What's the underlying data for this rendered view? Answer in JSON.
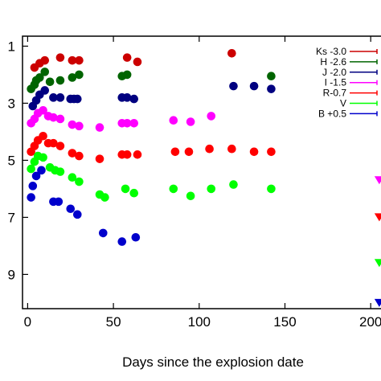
{
  "chart_data": {
    "type": "scatter",
    "title": "",
    "xlabel": "Days since the explosion date",
    "ylabel": "",
    "xlim": [
      -3,
      206
    ],
    "ylim": [
      10.2,
      0.65
    ],
    "y_inverted": true,
    "grid": false,
    "legend_position": "top-right",
    "x_ticks": [
      "0",
      "50",
      "100",
      "150",
      "200"
    ],
    "x_tick_values": [
      0,
      50,
      100,
      150,
      200
    ],
    "y_ticks": [
      "1",
      "3",
      "5",
      "7",
      "9"
    ],
    "y_tick_values": [
      1,
      3,
      5,
      7,
      9
    ],
    "series": [
      {
        "name": "Ks -3.0",
        "color": "#cc0000",
        "x": [
          4,
          7,
          10,
          19,
          26,
          30,
          58,
          64,
          119
        ],
        "y": [
          1.75,
          1.6,
          1.5,
          1.4,
          1.5,
          1.5,
          1.4,
          1.55,
          1.25
        ]
      },
      {
        "name": "H -2.6",
        "color": "#006400",
        "x": [
          2,
          4,
          5,
          7,
          10,
          13,
          19,
          26,
          30,
          55,
          58,
          142
        ],
        "y": [
          2.5,
          2.35,
          2.2,
          2.1,
          1.9,
          2.25,
          2.2,
          2.1,
          2.0,
          2.05,
          2.0,
          2.05
        ]
      },
      {
        "name": "J -2.0",
        "color": "#000080",
        "x": [
          3,
          5,
          7,
          10,
          15,
          19,
          25,
          27,
          29,
          55,
          58,
          62,
          120,
          132,
          142
        ],
        "y": [
          3.1,
          2.9,
          2.7,
          2.55,
          2.8,
          2.8,
          2.85,
          2.85,
          2.85,
          2.8,
          2.8,
          2.85,
          2.4,
          2.4,
          2.5
        ]
      },
      {
        "name": "I -1.5",
        "color": "#ff00ff",
        "x": [
          2,
          4,
          6,
          9,
          12,
          15,
          19,
          26,
          30,
          42,
          55,
          58,
          62,
          85,
          95,
          107,
          205
        ],
        "y": [
          3.7,
          3.55,
          3.35,
          3.25,
          3.45,
          3.5,
          3.55,
          3.75,
          3.8,
          3.85,
          3.7,
          3.7,
          3.7,
          3.6,
          3.65,
          3.45,
          5.7
        ]
      },
      {
        "name": "R-0.7",
        "color": "#ff0000",
        "x": [
          2,
          4,
          6,
          9,
          12,
          15,
          19,
          26,
          30,
          42,
          55,
          58,
          64,
          86,
          94,
          106,
          119,
          132,
          142,
          205
        ],
        "y": [
          4.7,
          4.5,
          4.3,
          4.15,
          4.4,
          4.4,
          4.5,
          4.75,
          4.85,
          4.95,
          4.8,
          4.8,
          4.8,
          4.7,
          4.7,
          4.6,
          4.6,
          4.7,
          4.7,
          7.0
        ]
      },
      {
        "name": "V",
        "color": "#00ff00",
        "x": [
          2,
          4,
          6,
          9,
          13,
          16,
          19,
          26,
          30,
          42,
          45,
          57,
          62,
          85,
          95,
          107,
          120,
          142,
          205
        ],
        "y": [
          5.3,
          5.05,
          4.85,
          4.9,
          5.25,
          5.35,
          5.4,
          5.6,
          5.75,
          6.2,
          6.3,
          6.0,
          6.15,
          6.0,
          6.25,
          6.0,
          5.85,
          6.0,
          8.6
        ]
      },
      {
        "name": "B +0.5",
        "color": "#0000cc",
        "x": [
          2,
          3,
          5,
          8,
          15,
          18,
          25,
          29,
          44,
          55,
          63,
          205
        ],
        "y": [
          6.3,
          5.9,
          5.55,
          5.35,
          6.45,
          6.45,
          6.7,
          6.9,
          7.55,
          7.85,
          7.7,
          10.0
        ]
      }
    ]
  }
}
